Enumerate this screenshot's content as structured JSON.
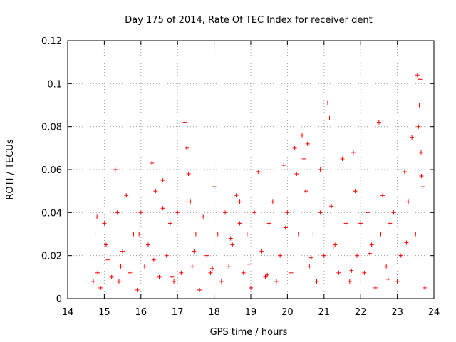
{
  "chart_data": {
    "type": "scatter",
    "title": "Day 175 of 2014, Rate Of TEC Index for receiver dent",
    "xlabel": "GPS time / hours",
    "ylabel": "ROTI / TECUs",
    "xlim": [
      14,
      24
    ],
    "ylim": [
      0,
      0.12
    ],
    "xticks": [
      "14",
      "15",
      "16",
      "17",
      "18",
      "19",
      "20",
      "21",
      "22",
      "23",
      "24"
    ],
    "yticks": [
      "0",
      "0.02",
      "0.04",
      "0.06",
      "0.08",
      "0.1",
      "0.12"
    ],
    "grid": true,
    "marker": "+",
    "color": "#ff0000",
    "series": [
      {
        "name": "ROTI",
        "x": [
          14.7,
          14.75,
          14.82,
          14.9,
          15.0,
          15.1,
          15.2,
          15.3,
          15.35,
          15.4,
          15.5,
          15.6,
          15.7,
          15.8,
          15.9,
          16.0,
          16.1,
          16.2,
          16.3,
          16.4,
          16.5,
          16.6,
          16.7,
          16.8,
          16.9,
          17.0,
          17.1,
          17.2,
          17.25,
          17.3,
          17.35,
          17.4,
          17.5,
          17.6,
          17.7,
          17.8,
          17.9,
          18.0,
          18.1,
          18.2,
          18.3,
          18.4,
          18.5,
          18.6,
          18.7,
          18.8,
          18.9,
          19.0,
          19.1,
          19.2,
          19.3,
          19.4,
          19.5,
          19.6,
          19.7,
          19.8,
          19.9,
          20.0,
          20.1,
          20.2,
          20.25,
          20.3,
          20.4,
          20.45,
          20.5,
          20.55,
          20.6,
          20.7,
          20.8,
          20.9,
          21.0,
          21.1,
          21.15,
          21.2,
          21.3,
          21.4,
          21.5,
          21.6,
          21.7,
          21.8,
          21.85,
          21.9,
          22.0,
          22.1,
          22.2,
          22.3,
          22.4,
          22.5,
          22.55,
          22.6,
          22.7,
          22.8,
          22.9,
          23.0,
          23.1,
          23.2,
          23.3,
          23.4,
          23.5,
          23.55,
          23.6,
          23.65,
          23.7,
          23.75,
          15.05,
          15.45,
          15.95,
          16.35,
          16.85,
          17.45,
          17.95,
          18.45,
          18.95,
          19.45,
          19.95,
          20.65,
          21.25,
          21.75,
          22.25,
          22.75,
          23.25,
          14.8,
          16.6,
          18.7,
          20.9,
          22.6,
          23.58,
          23.62,
          23.66
        ],
        "y": [
          0.008,
          0.03,
          0.012,
          0.005,
          0.035,
          0.018,
          0.01,
          0.06,
          0.04,
          0.008,
          0.022,
          0.048,
          0.012,
          0.03,
          0.004,
          0.04,
          0.015,
          0.025,
          0.063,
          0.05,
          0.01,
          0.055,
          0.02,
          0.035,
          0.008,
          0.04,
          0.012,
          0.082,
          0.07,
          0.058,
          0.045,
          0.015,
          0.03,
          0.004,
          0.038,
          0.02,
          0.012,
          0.052,
          0.03,
          0.008,
          0.04,
          0.015,
          0.025,
          0.048,
          0.035,
          0.012,
          0.03,
          0.005,
          0.04,
          0.059,
          0.022,
          0.01,
          0.035,
          0.045,
          0.008,
          0.02,
          0.062,
          0.04,
          0.012,
          0.07,
          0.058,
          0.03,
          0.076,
          0.065,
          0.05,
          0.072,
          0.015,
          0.03,
          0.008,
          0.04,
          0.02,
          0.091,
          0.084,
          0.043,
          0.025,
          0.012,
          0.065,
          0.035,
          0.008,
          0.068,
          0.05,
          0.02,
          0.035,
          0.012,
          0.04,
          0.025,
          0.005,
          0.082,
          0.03,
          0.048,
          0.015,
          0.035,
          0.04,
          0.008,
          0.02,
          0.059,
          0.045,
          0.075,
          0.03,
          0.104,
          0.09,
          0.068,
          0.052,
          0.005,
          0.025,
          0.015,
          0.03,
          0.018,
          0.01,
          0.022,
          0.014,
          0.028,
          0.016,
          0.011,
          0.033,
          0.019,
          0.024,
          0.013,
          0.021,
          0.009,
          0.026,
          0.038,
          0.042,
          0.045,
          0.06,
          0.048,
          0.08,
          0.102,
          0.057
        ]
      }
    ]
  }
}
